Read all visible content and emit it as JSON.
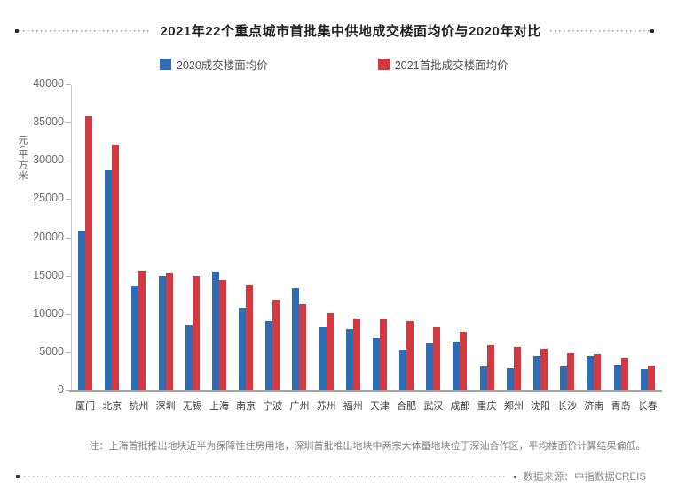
{
  "page": {
    "title": "2021年22个重点城市首批集中供地成交楼面均价与2020年对比",
    "note": "注：上海首批推出地块近半为保障性住房用地，深圳首批推出地块中两宗大体量地块位于深汕合作区，平均楼面价计算结果偏低。",
    "source": "数据来源：中指数据CREIS"
  },
  "colors": {
    "bar_2020": "#2e6db4",
    "bar_2021": "#d23940",
    "axis": "#a3a3a3",
    "text_gray": "#808080"
  },
  "chart_data": {
    "type": "bar",
    "title": "2021年22个重点城市首批集中供地成交楼面均价与2020年对比",
    "xlabel": "",
    "ylabel": "元\\平方米",
    "ylim": [
      0,
      40000
    ],
    "ytick_step": 5000,
    "grid": false,
    "legend_position": "top",
    "categories": [
      "厦门",
      "北京",
      "杭州",
      "深圳",
      "无锡",
      "上海",
      "南京",
      "宁波",
      "广州",
      "苏州",
      "福州",
      "天津",
      "合肥",
      "武汉",
      "成都",
      "重庆",
      "郑州",
      "沈阳",
      "长沙",
      "济南",
      "青岛",
      "长春"
    ],
    "series": [
      {
        "name": "2020成交楼面均价",
        "color": "#2e6db4",
        "values": [
          20900,
          28800,
          13700,
          14900,
          8600,
          15500,
          10800,
          9100,
          13300,
          8300,
          8000,
          6800,
          5300,
          6200,
          6400,
          3100,
          2900,
          4500,
          3100,
          4500,
          3400,
          2800
        ]
      },
      {
        "name": "2021首批成交楼面均价",
        "color": "#d23940",
        "values": [
          35800,
          32100,
          15600,
          15300,
          15000,
          14400,
          13800,
          11800,
          11300,
          10100,
          9400,
          9300,
          9000,
          8300,
          7600,
          5900,
          5700,
          5500,
          4900,
          4700,
          4200,
          3300
        ]
      }
    ]
  }
}
